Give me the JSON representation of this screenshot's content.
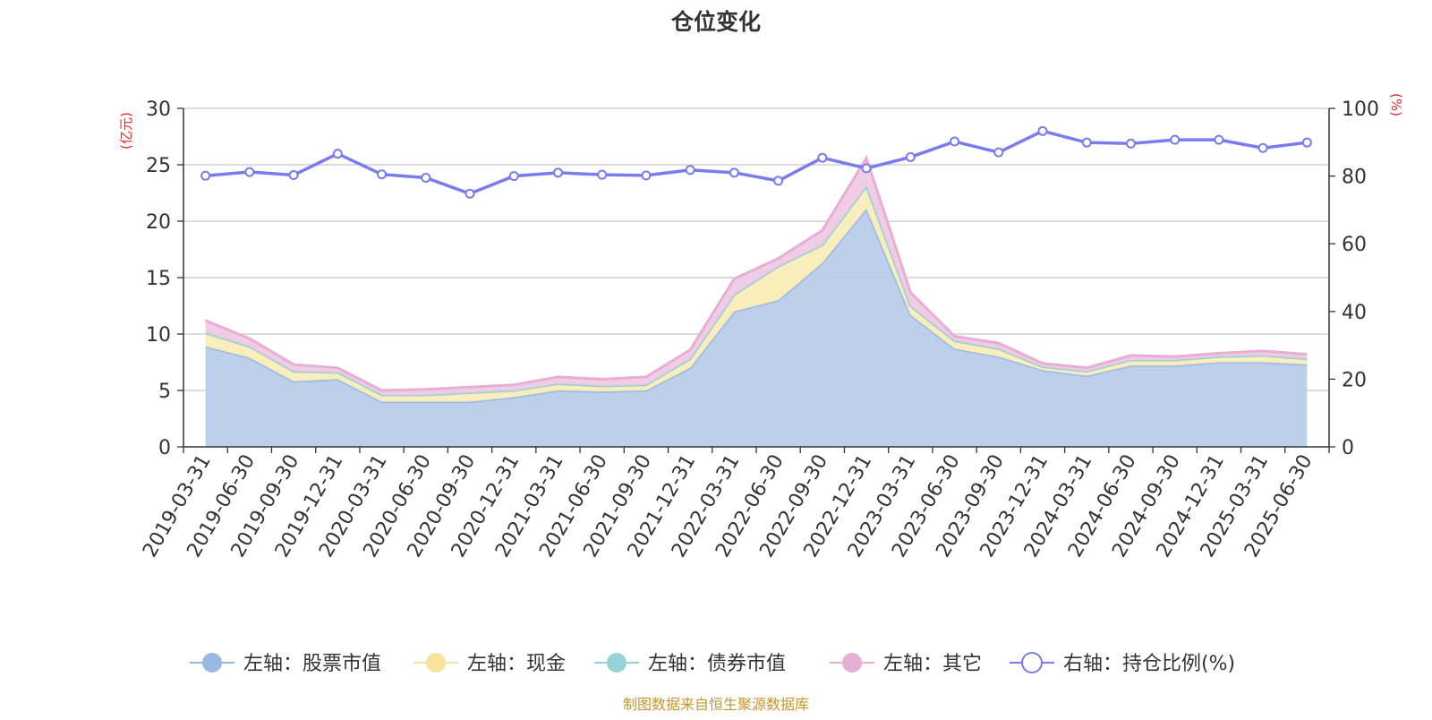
{
  "chart_data": {
    "type": "area",
    "title": "仓位变化",
    "y_left_unit": "(亿元)",
    "y_right_unit": "(%)",
    "ylim_left": [
      0,
      30
    ],
    "ylim_right": [
      0,
      100
    ],
    "y_left_ticks": [
      0,
      5,
      10,
      15,
      20,
      25,
      30
    ],
    "y_right_ticks": [
      0,
      20,
      40,
      60,
      80,
      100
    ],
    "grid": true,
    "legend_position": "bottom",
    "categories": [
      "2019-03-31",
      "2019-06-30",
      "2019-09-30",
      "2019-12-31",
      "2020-03-31",
      "2020-06-30",
      "2020-09-30",
      "2020-12-31",
      "2021-03-31",
      "2021-06-30",
      "2021-09-30",
      "2021-12-31",
      "2022-03-31",
      "2022-06-30",
      "2022-09-30",
      "2022-12-31",
      "2023-03-31",
      "2023-06-30",
      "2023-09-30",
      "2023-12-31",
      "2024-03-31",
      "2024-06-30",
      "2024-09-30",
      "2024-12-31",
      "2025-03-31",
      "2025-06-30"
    ],
    "series": [
      {
        "name": "左轴：股票市值",
        "axis": "left",
        "stacked": true,
        "color": "#9bb8e3",
        "fill": "#b8cdeb",
        "values": [
          8.9,
          7.9,
          5.8,
          6.0,
          4.0,
          4.0,
          4.0,
          4.4,
          5.0,
          4.9,
          5.0,
          7.0,
          12.0,
          13.0,
          16.3,
          21.1,
          11.7,
          8.7,
          8.0,
          6.8,
          6.3,
          7.2,
          7.2,
          7.5,
          7.5,
          7.3
        ]
      },
      {
        "name": "左轴：现金",
        "axis": "left",
        "stacked": true,
        "color": "#f7e39c",
        "fill": "#f9edb8",
        "values": [
          1.2,
          1.0,
          0.9,
          0.6,
          0.6,
          0.6,
          0.8,
          0.6,
          0.6,
          0.5,
          0.5,
          0.8,
          1.5,
          3.0,
          1.6,
          2.0,
          0.8,
          0.7,
          0.7,
          0.3,
          0.4,
          0.5,
          0.5,
          0.5,
          0.6,
          0.5
        ]
      },
      {
        "name": "左轴：债券市值",
        "axis": "left",
        "stacked": true,
        "color": "#95d3d5",
        "fill": "#b9e3e4",
        "values": [
          0,
          0,
          0,
          0,
          0,
          0,
          0,
          0,
          0,
          0,
          0,
          0,
          0,
          0,
          0,
          0,
          0,
          0,
          0,
          0,
          0,
          0,
          0,
          0,
          0,
          0
        ]
      },
      {
        "name": "左轴：其它",
        "axis": "left",
        "stacked": true,
        "color": "#e7aed6",
        "fill": "#efc9e4",
        "values": [
          1.1,
          0.7,
          0.6,
          0.4,
          0.4,
          0.5,
          0.5,
          0.5,
          0.6,
          0.6,
          0.7,
          0.8,
          1.4,
          0.7,
          1.3,
          2.5,
          1.2,
          0.4,
          0.5,
          0.3,
          0.3,
          0.4,
          0.3,
          0.3,
          0.4,
          0.4
        ]
      },
      {
        "name": "右轴：持仓比例(%)",
        "axis": "right",
        "type": "line",
        "color": "#7b7bf0",
        "values": [
          80.1,
          81.2,
          80.3,
          86.6,
          80.5,
          79.5,
          74.8,
          80.0,
          81.0,
          80.4,
          80.2,
          81.8,
          81.0,
          78.6,
          85.4,
          82.3,
          85.6,
          90.2,
          87.0,
          93.3,
          89.9,
          89.6,
          90.7,
          90.7,
          88.3,
          89.9
        ]
      }
    ]
  },
  "source_note": "制图数据来自恒生聚源数据库"
}
